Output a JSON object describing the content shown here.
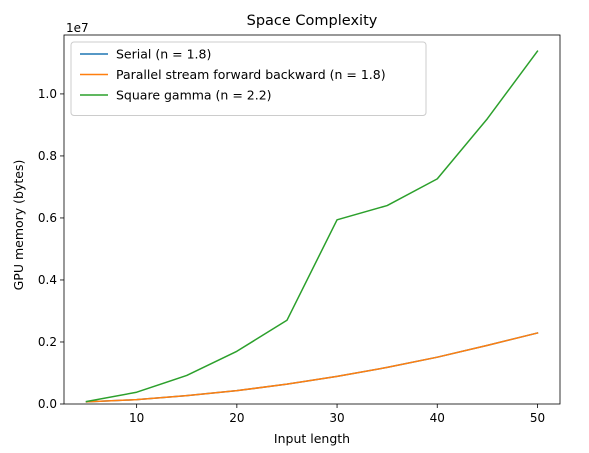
{
  "chart_data": {
    "type": "line",
    "title": "Space Complexity",
    "xlabel": "Input length",
    "ylabel": "GPU memory (bytes)",
    "offset_text": "1e7",
    "x": [
      5,
      10,
      15,
      20,
      25,
      30,
      35,
      40,
      45,
      50
    ],
    "xlim": [
      2.75,
      52.25
    ],
    "ylim": [
      0,
      11900000
    ],
    "x_ticks": [
      10,
      20,
      30,
      40,
      50
    ],
    "x_tick_labels": [
      "10",
      "20",
      "30",
      "40",
      "50"
    ],
    "y_ticks": [
      0,
      2000000,
      4000000,
      6000000,
      8000000,
      10000000
    ],
    "y_tick_labels": [
      "0.0",
      "0.2",
      "0.4",
      "0.6",
      "0.8",
      "1.0"
    ],
    "grid": false,
    "legend_position": "upper-left",
    "series": [
      {
        "name": "Serial (n = 1.8)",
        "color": "#1f77b4",
        "values": [
          70000,
          140000,
          270000,
          430000,
          640000,
          890000,
          1180000,
          1510000,
          1890000,
          2290000
        ]
      },
      {
        "name": "Parallel stream forward backward (n = 1.8)",
        "color": "#ff7f0e",
        "values": [
          70000,
          140000,
          270000,
          430000,
          640000,
          890000,
          1180000,
          1510000,
          1890000,
          2290000
        ]
      },
      {
        "name": "Square gamma (n = 2.2)",
        "color": "#2ca02c",
        "values": [
          80000,
          380000,
          920000,
          1700000,
          2700000,
          5940000,
          6400000,
          7260000,
          9200000,
          11380000
        ]
      }
    ]
  }
}
